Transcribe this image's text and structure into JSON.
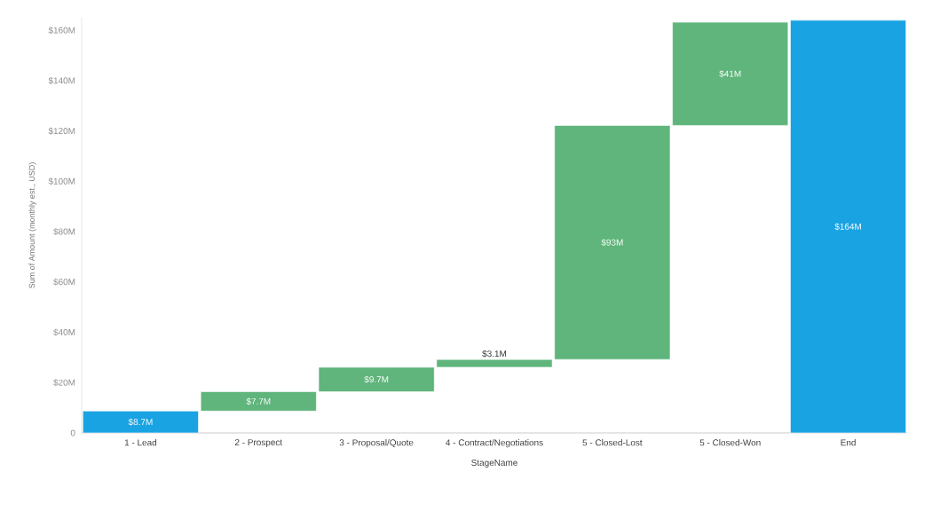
{
  "chart_data": {
    "type": "bar",
    "xlabel": "StageName",
    "ylabel": "Sum of Amount (monthly est., USD)",
    "categories": [
      "1 - Lead",
      "2 - Prospect",
      "3 - Proposal/Quote",
      "4 - Contract/Negotiations",
      "5 - Closed-Lost",
      "5 - Closed-Won",
      "End"
    ],
    "values": [
      8.7,
      7.7,
      9.7,
      3.1,
      93,
      41,
      164
    ],
    "base": [
      0,
      8.7,
      16.4,
      26.1,
      29.2,
      122.2,
      0
    ],
    "value_labels": [
      "$8.7M",
      "$7.7M",
      "$9.7M",
      "$3.1M",
      "$93M",
      "$41M",
      "$164M"
    ],
    "colors": [
      "#1aa3e3",
      "#5fb57b",
      "#5fb57b",
      "#5fb57b",
      "#5fb57b",
      "#5fb57b",
      "#1aa3e3"
    ],
    "ylim": [
      0,
      165
    ],
    "yticks": [
      0,
      {
        "value": 20,
        "label": "$20M"
      },
      {
        "value": 40,
        "label": "$40M"
      },
      {
        "value": 60,
        "label": "$60M"
      },
      {
        "value": 80,
        "label": "$80M"
      },
      {
        "value": 100,
        "label": "$100M"
      },
      {
        "value": 120,
        "label": "$120M"
      },
      {
        "value": 140,
        "label": "$140M"
      },
      {
        "value": 160,
        "label": "$160M"
      }
    ]
  }
}
